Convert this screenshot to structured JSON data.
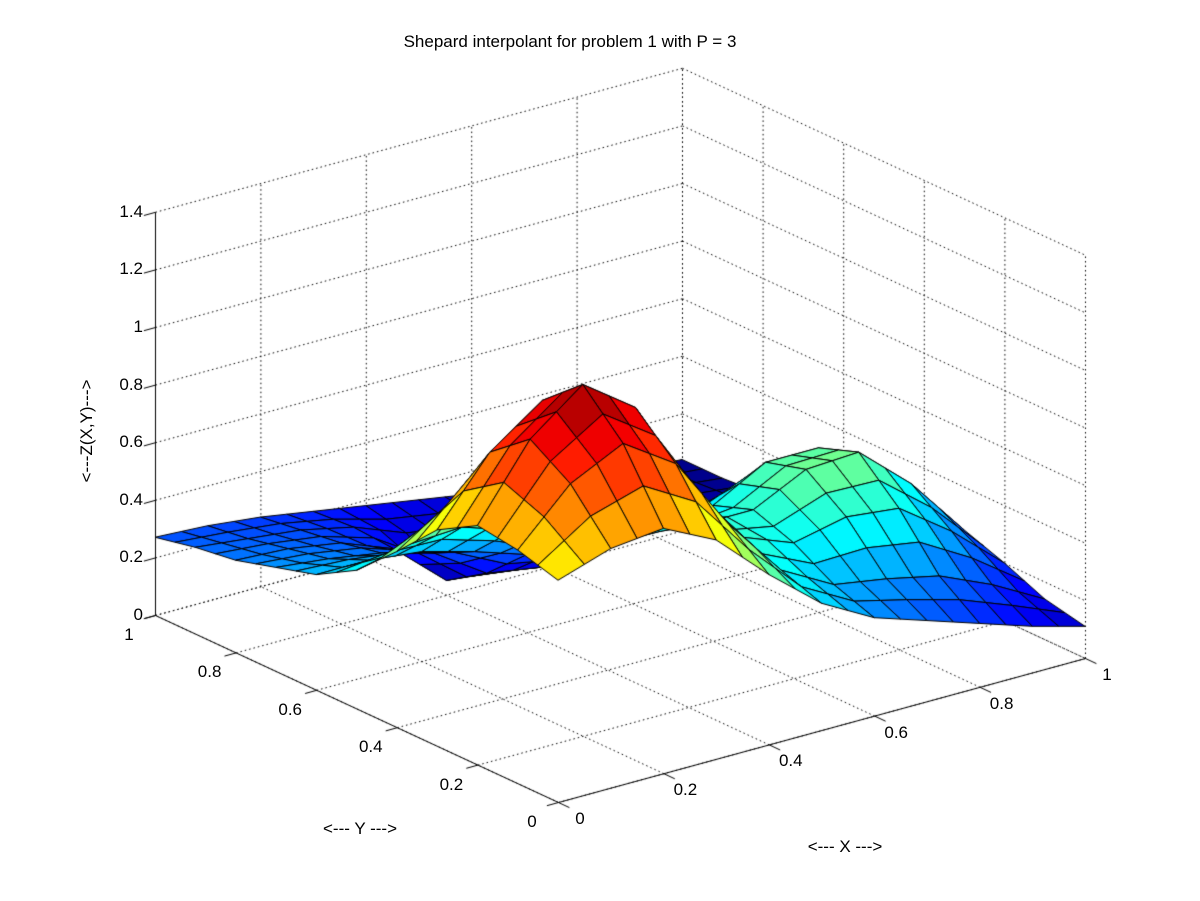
{
  "title": "Shepard interpolant for problem 1 with P = 3",
  "axes": {
    "x": {
      "label": "<--- X --->",
      "ticks": [
        0,
        0.2,
        0.4,
        0.6,
        0.8,
        1
      ],
      "lim": [
        0,
        1
      ]
    },
    "y": {
      "label": "<--- Y --->",
      "ticks": [
        0,
        0.2,
        0.4,
        0.6,
        0.8,
        1
      ],
      "lim": [
        0,
        1
      ]
    },
    "z": {
      "label": "<---Z(X,Y)--->",
      "ticks": [
        0,
        0.2,
        0.4,
        0.6,
        0.8,
        1,
        1.2,
        1.4
      ],
      "lim": [
        0,
        1.4
      ]
    }
  },
  "style": {
    "background": "#ffffff",
    "mesh_edge_color": "#000000",
    "grid_line_color": "#000000",
    "axis_color": "#000000",
    "text_color": "#000000",
    "colormap": "jet"
  },
  "chart_data": {
    "type": "surface",
    "title": "Shepard interpolant for problem 1 with P = 3",
    "xlabel": "<--- X --->",
    "ylabel": "<--- Y --->",
    "zlabel": "<---Z(X,Y)--->",
    "xlim": [
      0,
      1
    ],
    "ylim": [
      0,
      1
    ],
    "zlim": [
      0,
      1.4
    ],
    "grid": true,
    "view": {
      "azimuth": -37.5,
      "elevation": 30
    },
    "x": [
      0,
      0.1,
      0.2,
      0.3,
      0.4,
      0.5,
      0.6,
      0.7,
      0.8,
      0.9,
      1
    ],
    "y": [
      0,
      0.1,
      0.2,
      0.3,
      0.4,
      0.5,
      0.6,
      0.7,
      0.8,
      0.9,
      1
    ],
    "z": [
      [
        0.77,
        0.83,
        0.85,
        0.76,
        0.59,
        0.44,
        0.34,
        0.28,
        0.22,
        0.16,
        0.11
      ],
      [
        0.81,
        0.99,
        1.08,
        0.96,
        0.7,
        0.49,
        0.39,
        0.36,
        0.32,
        0.24,
        0.14
      ],
      [
        0.83,
        1.08,
        1.22,
        1.09,
        0.78,
        0.54,
        0.47,
        0.51,
        0.49,
        0.36,
        0.2
      ],
      [
        0.75,
        0.97,
        1.1,
        0.98,
        0.71,
        0.52,
        0.52,
        0.61,
        0.62,
        0.46,
        0.25
      ],
      [
        0.61,
        0.73,
        0.79,
        0.71,
        0.54,
        0.43,
        0.47,
        0.57,
        0.57,
        0.43,
        0.23
      ],
      [
        0.48,
        0.52,
        0.53,
        0.47,
        0.38,
        0.33,
        0.35,
        0.4,
        0.39,
        0.29,
        0.16
      ],
      [
        0.4,
        0.4,
        0.38,
        0.33,
        0.27,
        0.23,
        0.23,
        0.24,
        0.22,
        0.16,
        0.09
      ],
      [
        0.36,
        0.34,
        0.31,
        0.26,
        0.14,
        0.11,
        0.16,
        0.15,
        0.13,
        0.09,
        0.06
      ],
      [
        0.32,
        0.31,
        0.28,
        0.21,
        0.05,
        0.03,
        0.12,
        0.12,
        0.09,
        0.07,
        0.05
      ],
      [
        0.3,
        0.28,
        0.26,
        0.22,
        0.15,
        0.12,
        0.12,
        0.1,
        0.08,
        0.06,
        0.04
      ],
      [
        0.27,
        0.26,
        0.24,
        0.21,
        0.18,
        0.15,
        0.12,
        0.09,
        0.07,
        0.05,
        0.04
      ]
    ]
  }
}
